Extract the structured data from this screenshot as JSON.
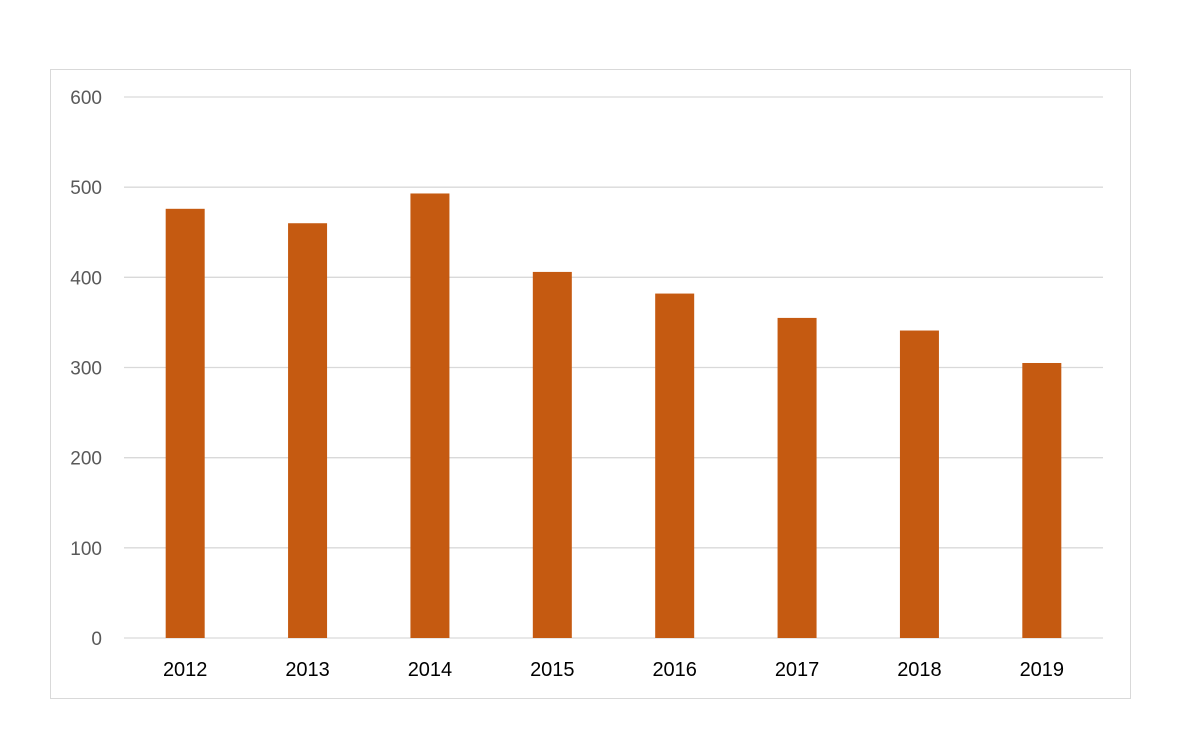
{
  "chart_data": {
    "type": "bar",
    "categories": [
      "2012",
      "2013",
      "2014",
      "2015",
      "2016",
      "2017",
      "2018",
      "2019"
    ],
    "values": [
      476,
      460,
      493,
      406,
      382,
      355,
      341,
      305
    ],
    "title": "",
    "xlabel": "",
    "ylabel": "",
    "ylim": [
      0,
      600
    ],
    "yticks": [
      0,
      100,
      200,
      300,
      400,
      500,
      600
    ],
    "grid": true,
    "legend": "none",
    "bar_color": "#c55a11",
    "grid_color": "#d9d9d9"
  }
}
